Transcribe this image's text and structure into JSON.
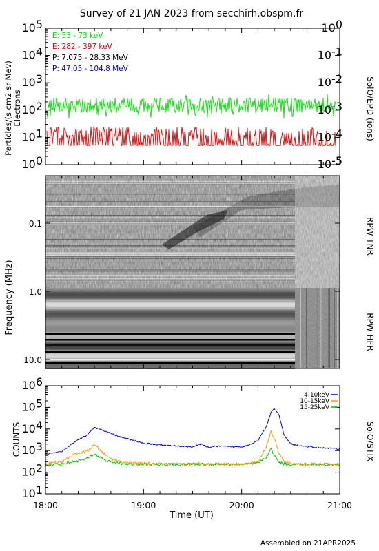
{
  "title": "Survey of 21 JAN 2023 from secchirh.obspm.fr",
  "footer": "Assembled on 21APR2025",
  "colors": {
    "green": "#00e000",
    "red": "#e00000",
    "black": "#000000",
    "blue": "#0000c8",
    "orange": "#ff9900",
    "axis": "#000000"
  },
  "chart_data": [
    {
      "type": "line",
      "panel": "particles",
      "ylabel": "Particles/(s cm2 sr Mev)",
      "ylabel2": "Electrons",
      "right_label": "SolO/EPD (ions)",
      "ylim": [
        1,
        100000
      ],
      "y_log": true,
      "y_ticks": [
        "10^0",
        "10^1",
        "10^2",
        "10^3",
        "10^4",
        "10^5"
      ],
      "ylim_right": [
        1e-05,
        1
      ],
      "y_right_ticks": [
        "10^-5",
        "10^-4",
        "10^-3",
        "10^-2",
        "10^-1",
        "10^0"
      ],
      "x_range": [
        "18:00",
        "21:00"
      ],
      "legend": [
        {
          "label": "E: 53 - 73 keV",
          "color": "#00e000"
        },
        {
          "label": "E: 282 - 397 keV",
          "color": "#e00000"
        },
        {
          "label": "P: 7.075 - 28.33 MeV",
          "color": "#000000"
        },
        {
          "label": "P: 47.05 - 104.8 MeV",
          "color": "#0000c8"
        }
      ],
      "series": [
        {
          "name": "E: 53 - 73 keV",
          "typical_value": 150,
          "range": [
            60,
            400
          ]
        },
        {
          "name": "E: 282 - 397 keV",
          "typical_value": 8,
          "range": [
            5,
            25
          ]
        }
      ]
    },
    {
      "type": "heatmap",
      "panel": "radio",
      "ylabel": "Frequency (MHz)",
      "y_ticks": [
        "0.1",
        "1.0",
        "10.0"
      ],
      "right_label_top": "RPW TNR",
      "right_label_bottom": "RPW HFR"
    },
    {
      "type": "line",
      "panel": "xray",
      "ylabel": "COUNTS",
      "xlabel": "Time (UT)",
      "right_label": "SolO/STIX",
      "y_log": true,
      "ylim": [
        10,
        1000000
      ],
      "y_ticks": [
        "10^1",
        "10^2",
        "10^3",
        "10^4",
        "10^5",
        "10^6"
      ],
      "x_ticks": [
        "18:00",
        "19:00",
        "20:00",
        "21:00"
      ],
      "x_minutes": [
        0,
        10,
        18,
        25,
        30,
        38,
        45,
        50,
        55,
        60,
        75,
        90,
        95,
        100,
        105,
        115,
        120,
        125,
        130,
        135,
        138,
        140,
        143,
        146,
        149,
        152,
        158,
        165,
        172,
        180
      ],
      "series": [
        {
          "name": "4-10keV",
          "color": "#0000c8",
          "values": [
            700,
            900,
            2500,
            5000,
            12000,
            7000,
            4500,
            3500,
            2800,
            2200,
            1700,
            1500,
            2000,
            1400,
            1600,
            1500,
            1500,
            1900,
            3000,
            12000,
            60000,
            90000,
            40000,
            5000,
            2500,
            1800,
            1600,
            1400,
            1300,
            1200
          ]
        },
        {
          "name": "10-15keV",
          "color": "#ff9900",
          "values": [
            250,
            300,
            700,
            900,
            1800,
            500,
            320,
            270,
            260,
            250,
            240,
            240,
            260,
            240,
            250,
            240,
            240,
            250,
            300,
            1500,
            8000,
            3500,
            700,
            300,
            260,
            250,
            240,
            240,
            240,
            230
          ]
        },
        {
          "name": "15-25keV",
          "color": "#00c000",
          "values": [
            220,
            240,
            320,
            400,
            700,
            320,
            260,
            240,
            230,
            230,
            230,
            230,
            240,
            230,
            235,
            230,
            230,
            240,
            260,
            500,
            1200,
            600,
            300,
            240,
            230,
            230,
            230,
            225,
            225,
            220
          ]
        }
      ]
    }
  ]
}
